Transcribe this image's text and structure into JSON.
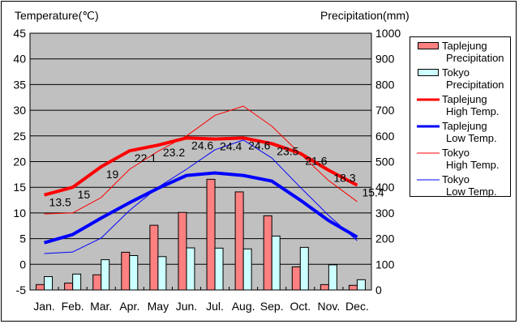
{
  "chart_data": {
    "type": "bar+line",
    "y_left_label": "Temperature(℃)",
    "y_right_label": "Precipitation(mm)",
    "ylim_left": [
      -5,
      45
    ],
    "ylim_right": [
      0,
      1000
    ],
    "yticks_left": [
      "45",
      "40",
      "35",
      "30",
      "25",
      "20",
      "15",
      "10",
      "5",
      "0",
      "-5"
    ],
    "yticks_right": [
      "1000",
      "900",
      "800",
      "700",
      "600",
      "500",
      "400",
      "300",
      "200",
      "100",
      "0"
    ],
    "categories": [
      "Jan.",
      "Feb.",
      "Mar.",
      "Apr.",
      "May",
      "Jun.",
      "Jul.",
      "Aug.",
      "Sep.",
      "Oct.",
      "Nov.",
      "Dec."
    ],
    "grid": true,
    "legend_position": "right",
    "bar_series": [
      {
        "name": "Taplejung Precipitation",
        "legend": [
          "Taplejung",
          "Precipitation"
        ],
        "color": "#ff8080",
        "values": [
          21,
          27,
          59,
          147,
          252,
          302,
          431,
          382,
          289,
          90,
          21,
          18
        ]
      },
      {
        "name": "Tokyo Precipitation",
        "legend": [
          "Tokyo",
          "Precipitation"
        ],
        "color": "#ccffff",
        "values": [
          52,
          62,
          118,
          134,
          130,
          164,
          163,
          160,
          210,
          166,
          98,
          40
        ]
      }
    ],
    "line_series": [
      {
        "name": "Taplejung High Temp.",
        "legend": [
          "Taplejung",
          "High Temp."
        ],
        "color": "#ff0000",
        "width": "thick",
        "values": [
          13.5,
          15,
          19,
          22.1,
          23.2,
          24.6,
          24.4,
          24.6,
          23.5,
          21.6,
          18.3,
          15.4
        ],
        "labels": [
          "13.5",
          "15",
          "19",
          "22.1",
          "23.2",
          "24.6",
          "24.4",
          "24.6",
          "23.5",
          "21.6",
          "18.3",
          "15.4"
        ]
      },
      {
        "name": "Taplejung Low Temp.",
        "legend": [
          "Taplejung",
          "Low Temp."
        ],
        "color": "#0000ff",
        "width": "thick",
        "values": [
          4.2,
          5.8,
          9,
          12,
          14.8,
          17.3,
          17.8,
          17.3,
          16.2,
          12.5,
          8.5,
          5.3
        ]
      },
      {
        "name": "Tokyo High Temp.",
        "legend": [
          "Tokyo",
          "High Temp."
        ],
        "color": "#ff0000",
        "width": "thin",
        "values": [
          9.8,
          10,
          13,
          18.5,
          22,
          25,
          29,
          30.8,
          26.9,
          21.5,
          16.3,
          12.2
        ]
      },
      {
        "name": "Tokyo Low Temp.",
        "legend": [
          "Tokyo",
          "Low Temp."
        ],
        "color": "#0000ff",
        "width": "thin",
        "values": [
          2.1,
          2.4,
          5.1,
          10.5,
          15,
          18.5,
          22.3,
          24.2,
          20.7,
          15,
          9.5,
          4.6
        ]
      }
    ]
  }
}
